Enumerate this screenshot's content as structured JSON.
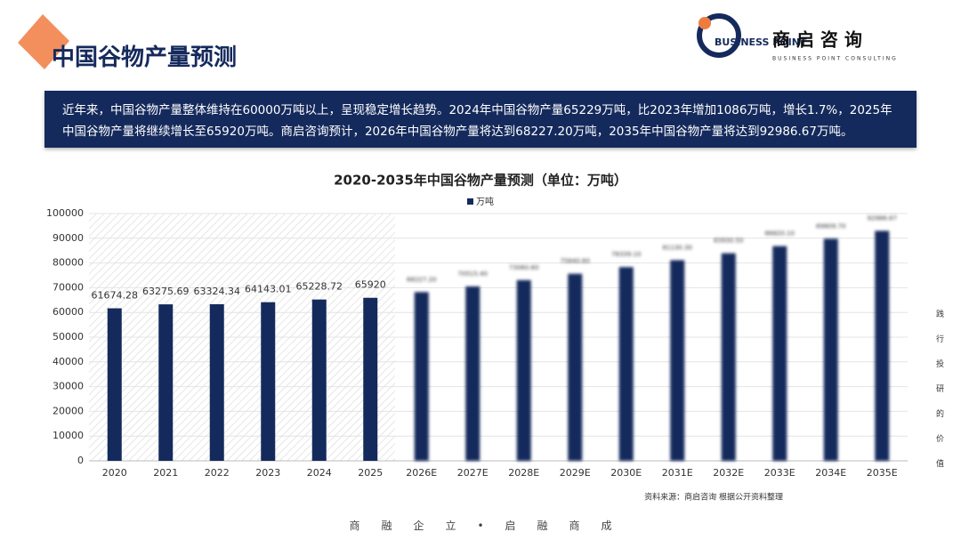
{
  "header": {
    "title": "中国谷物产量预测",
    "logo_text": "BUSINESS POINT",
    "brand": "商 启 咨 询",
    "brand_en": "BUSINESS POINT CONSULTING"
  },
  "summary": "近年来，中国谷物产量整体维持在60000万吨以上，呈现稳定增长趋势。2024年中国谷物产量65229万吨，比2023年增加1086万吨，增长1.7%，2025年中国谷物产量将继续增长至65920万吨。商启咨询预计，2026年中国谷物产量将达到68227.20万吨，2035年中国谷物产量将达到92986.67万吨。",
  "chart_data": {
    "type": "bar",
    "title": "2020-2035年中国谷物产量预测（单位：万吨）",
    "categories": [
      "2020",
      "2021",
      "2022",
      "2023",
      "2024",
      "2025",
      "2026E",
      "2027E",
      "2028E",
      "2029E",
      "2030E",
      "2031E",
      "2032E",
      "2033E",
      "2034E",
      "2035E"
    ],
    "series": [
      {
        "name": "万吨",
        "color": "#152a5c",
        "values": [
          61674.28,
          63275.69,
          63324.34,
          64143.01,
          65228.72,
          65920,
          68227.2,
          70515.4,
          73060.6,
          75640.6,
          78339.1,
          81130.3,
          83930.5,
          86820.1,
          89809.7,
          92986.67
        ],
        "value_labels": [
          "61674.28",
          "63275.69",
          "63324.34",
          "64143.01",
          "65228.72",
          "65920",
          "68227.20",
          "70515.40",
          "73060.60",
          "75640.60",
          "78339.10",
          "81130.30",
          "83930.50",
          "86820.10",
          "89809.70",
          "92986.67"
        ]
      }
    ],
    "ylim": [
      0,
      100000
    ],
    "yticks": [
      0,
      10000,
      20000,
      30000,
      40000,
      50000,
      60000,
      70000,
      80000,
      90000,
      100000
    ],
    "grid": true,
    "legend": "top",
    "source": "资料来源：商启咨询 根据公开资料整理"
  },
  "side_text": "践行投研的价值",
  "footer": "商　　融　　企　　立　　•　　启　　融　　商　　成"
}
